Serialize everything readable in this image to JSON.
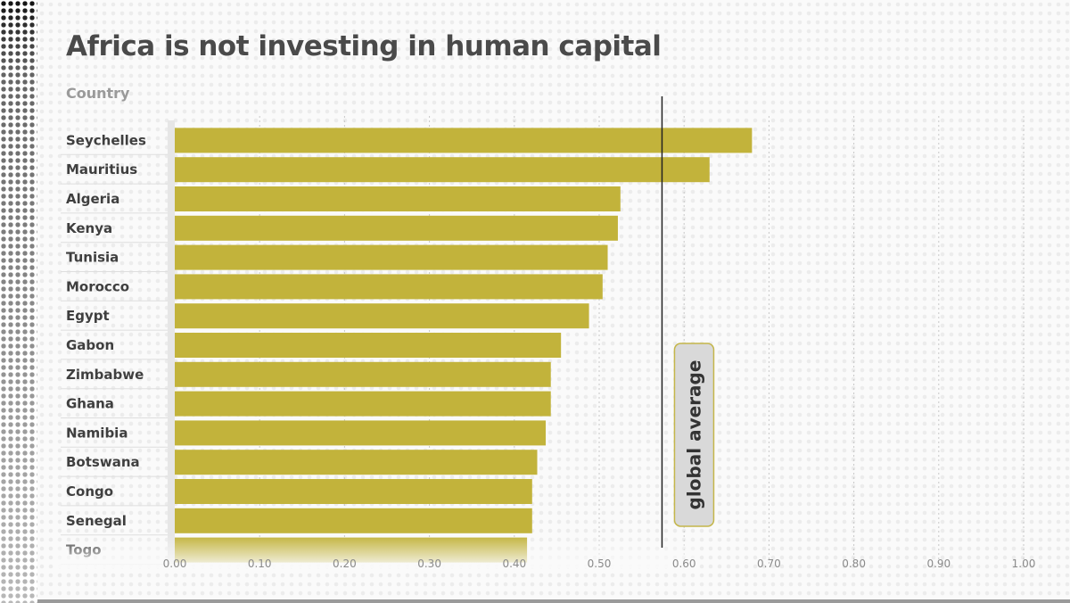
{
  "title": "Africa is not investing in human capital",
  "column_header": "Country",
  "colors": {
    "bar": "#c2b33b",
    "reference_line": "#222222",
    "grid": "#c8c8c8"
  },
  "chart_data": {
    "type": "bar",
    "orientation": "horizontal",
    "categories": [
      "Seychelles",
      "Mauritius",
      "Algeria",
      "Kenya",
      "Tunisia",
      "Morocco",
      "Egypt",
      "Gabon",
      "Zimbabwe",
      "Ghana",
      "Namibia",
      "Botswana",
      "Congo",
      "Senegal",
      "Togo"
    ],
    "values": [
      0.68,
      0.63,
      0.525,
      0.522,
      0.51,
      0.504,
      0.488,
      0.455,
      0.443,
      0.443,
      0.437,
      0.427,
      0.421,
      0.421,
      0.415
    ],
    "xlim": [
      0,
      1.0
    ],
    "xticks": [
      "0.00",
      "0.10",
      "0.20",
      "0.30",
      "0.40",
      "0.50",
      "0.60",
      "0.70",
      "0.80",
      "0.90",
      "1.00"
    ],
    "xlabel": "",
    "ylabel": "Country",
    "grid": true,
    "reference_line": {
      "value": 0.574,
      "label": "global average"
    }
  }
}
